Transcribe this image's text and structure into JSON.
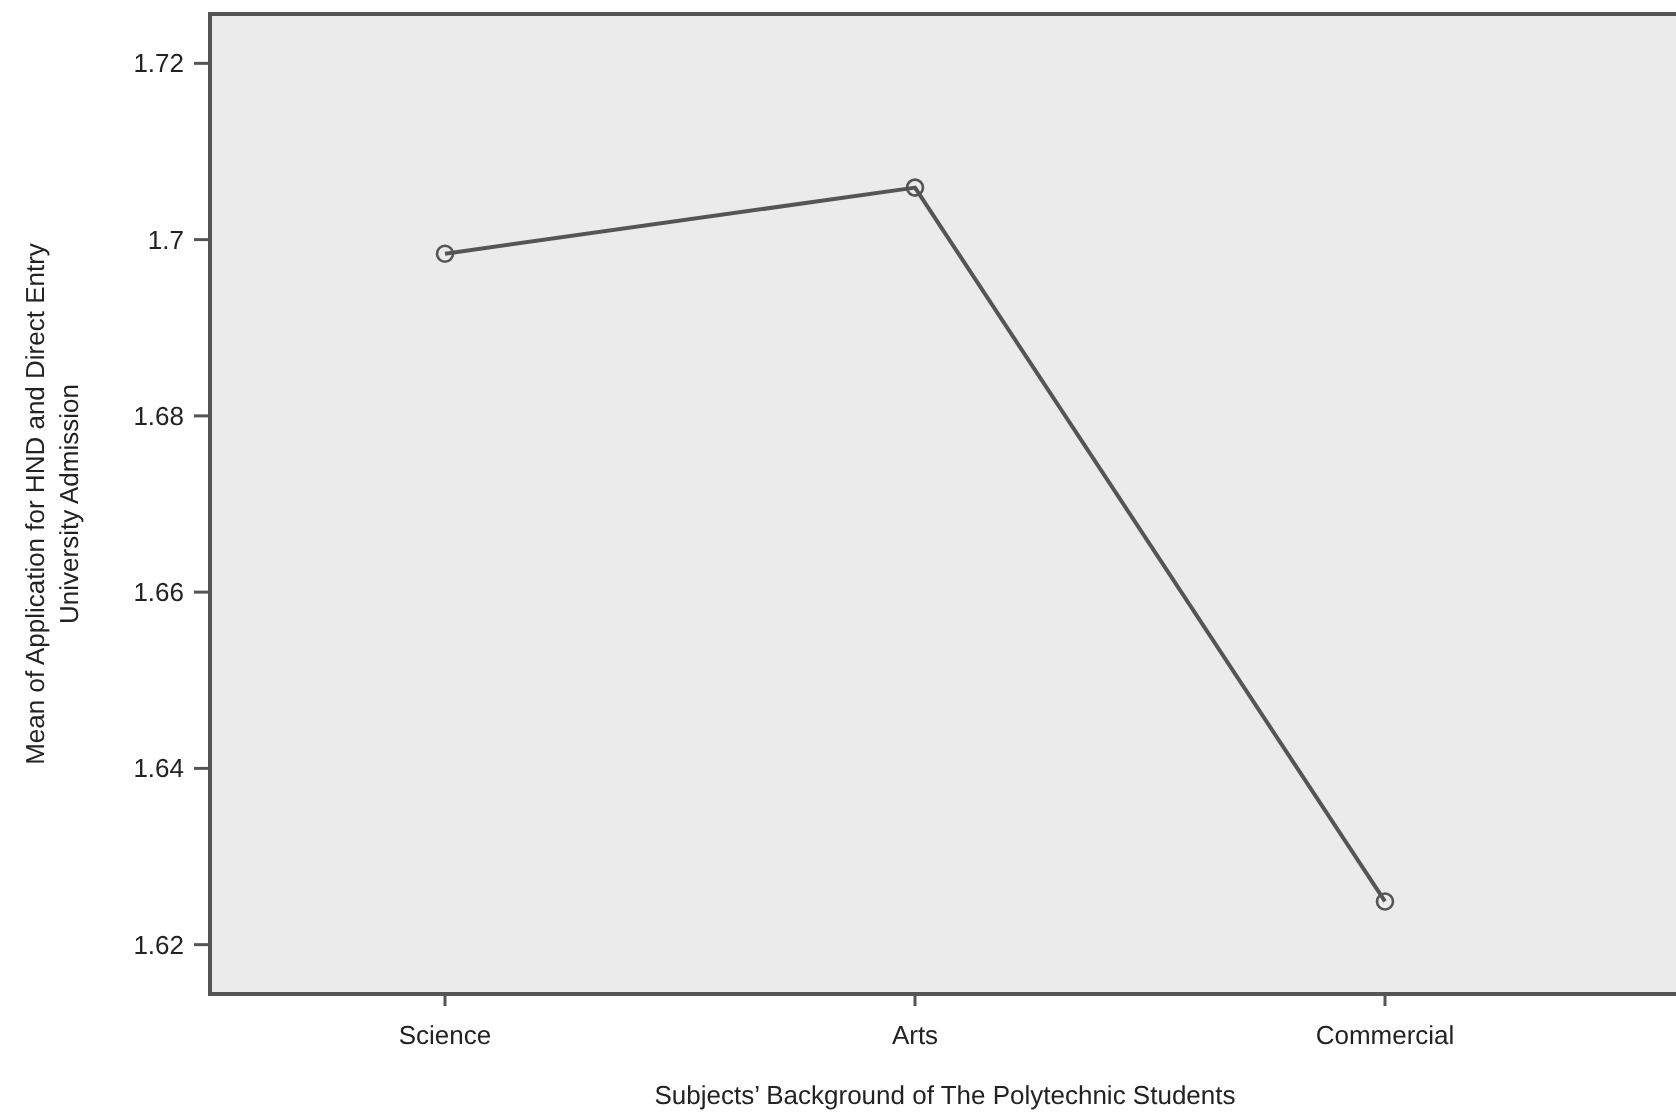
{
  "chart_data": {
    "type": "line",
    "xlabel": "Subjects’ Background of The Polytechnic Students",
    "ylabel": "Mean of Application for HND and Direct Entry University Admission",
    "categories": [
      "Science",
      "Arts",
      "Commercial"
    ],
    "series": [
      {
        "color": "#555555",
        "values": [
          1.6984,
          1.7059,
          1.6249
        ]
      }
    ],
    "ylim": [
      1.6144,
      1.7256
    ],
    "yticks": [
      1.62,
      1.64,
      1.66,
      1.68,
      1.7,
      1.72
    ],
    "grid": false,
    "marker": "circle",
    "line_style": "solid"
  }
}
